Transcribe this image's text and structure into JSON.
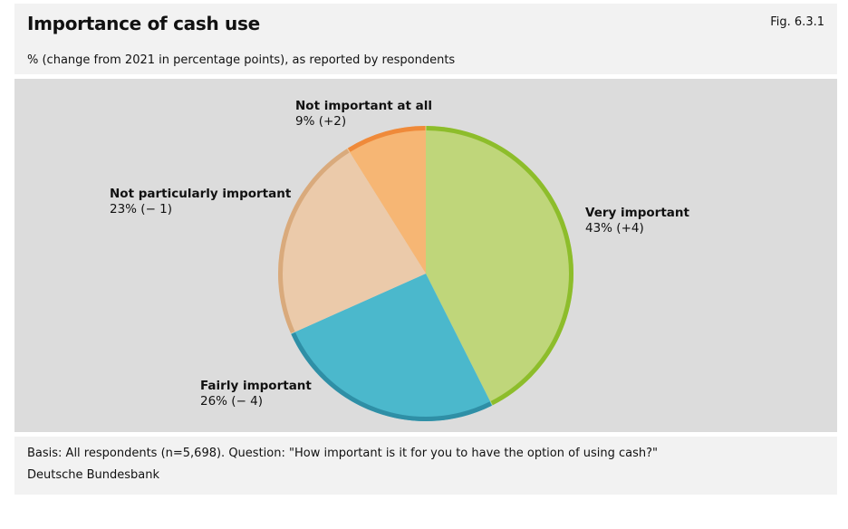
{
  "header": {
    "title": "Importance of cash use",
    "figure_number": "Fig. 6.3.1",
    "subtitle": "% (change from 2021 in percentage points), as reported by respondents"
  },
  "footer": {
    "basis": "Basis: All respondents (n=5,698). Question: \"How important is it for you to have the option of using cash?\"",
    "source": "Deutsche Bundesbank"
  },
  "chart_data": {
    "type": "pie",
    "title": "Importance of cash use",
    "subtitle": "% (change from 2021 in percentage points), as reported by respondents",
    "slices": [
      {
        "name": "Very important",
        "value": 43,
        "label": "43% (+4)",
        "fill": "#bfd67a",
        "edge": "#8dbd2b"
      },
      {
        "name": "Fairly important",
        "value": 26,
        "label": "26% (− 4)",
        "fill": "#4bb8cc",
        "edge": "#2f8fa6"
      },
      {
        "name": "Not particularly important",
        "value": 23,
        "label": "23% (− 1)",
        "fill": "#ebcaaa",
        "edge": "#d9aa7c"
      },
      {
        "name": "Not important at all",
        "value": 9,
        "label": "9% (+2)",
        "fill": "#f6b674",
        "edge": "#ef8a3a"
      }
    ],
    "start_angle_deg": 0,
    "direction": "clockwise",
    "legend": "none"
  }
}
